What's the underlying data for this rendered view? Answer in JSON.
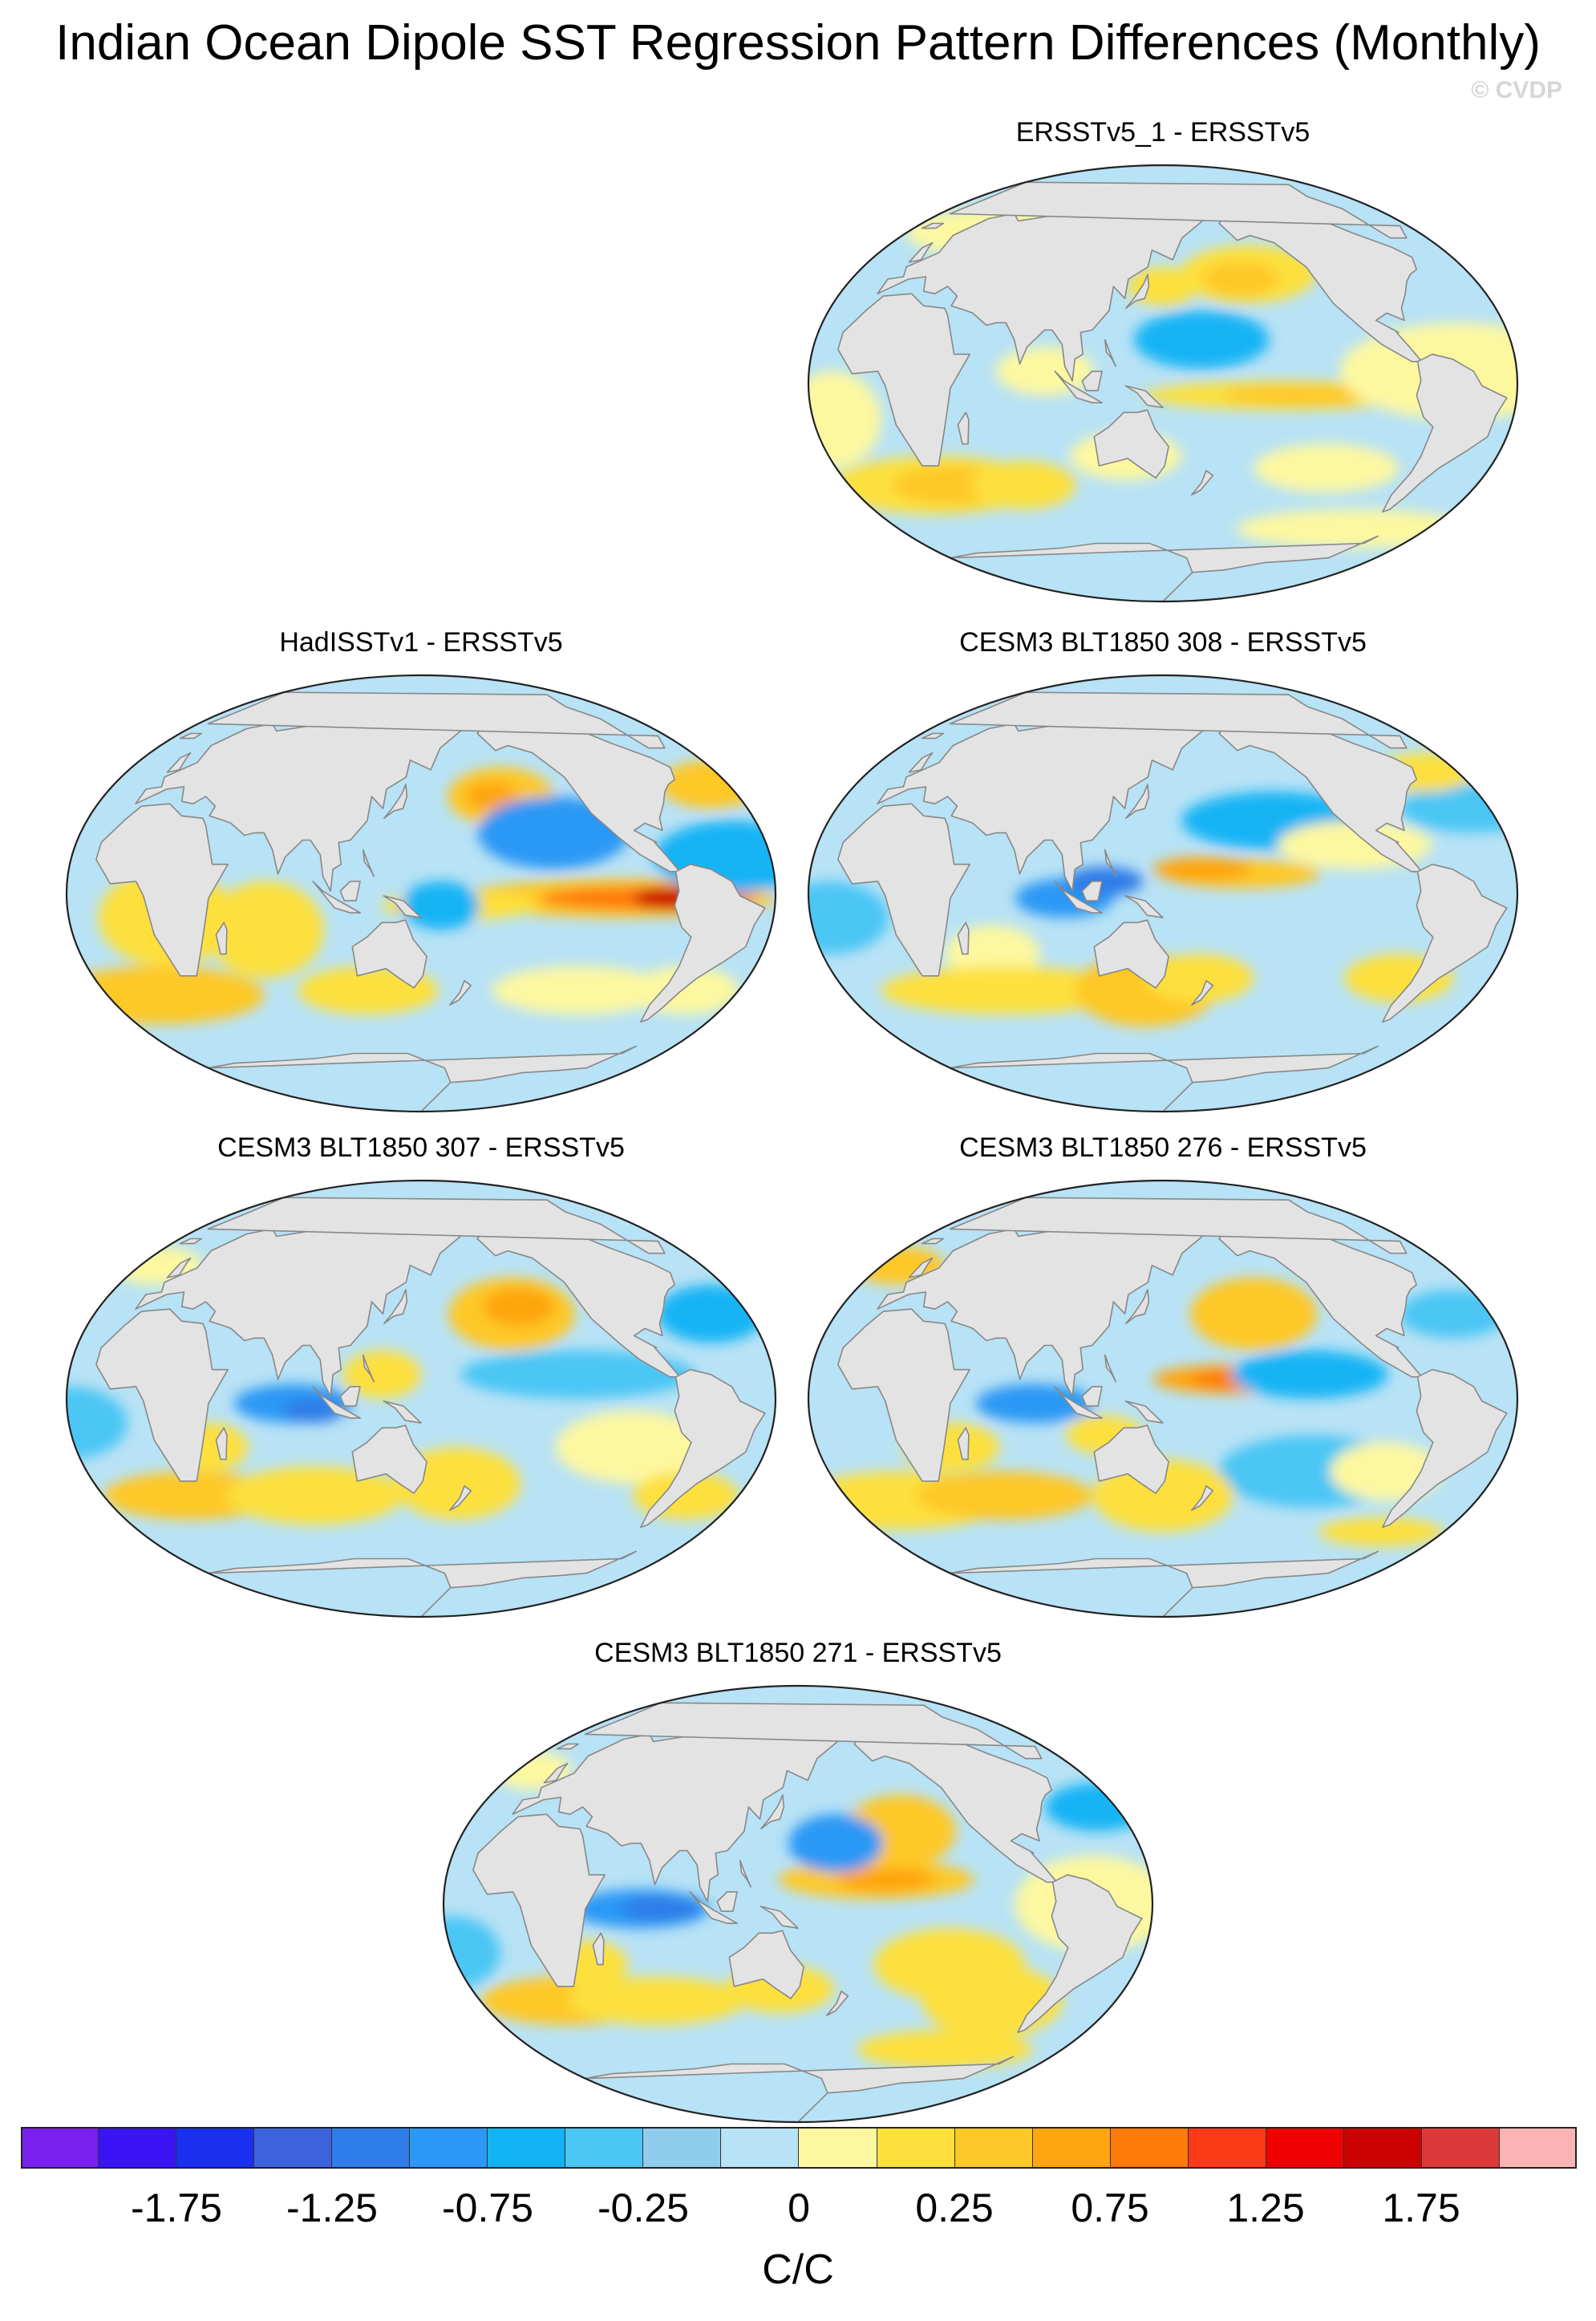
{
  "title": "Indian Ocean Dipole SST Regression Pattern Differences (Monthly)",
  "credit": "© CVDP",
  "panels": [
    {
      "id": "p1",
      "label": "ERSSTv5_1 - ERSSTv5"
    },
    {
      "id": "p2",
      "label": "HadISSTv1 - ERSSTv5"
    },
    {
      "id": "p3",
      "label": "CESM3 BLT1850 308 - ERSSTv5"
    },
    {
      "id": "p4",
      "label": "CESM3 BLT1850 307 - ERSSTv5"
    },
    {
      "id": "p5",
      "label": "CESM3 BLT1850 276 - ERSSTv5"
    },
    {
      "id": "p6",
      "label": "CESM3 BLT1850 271 - ERSSTv5"
    }
  ],
  "colorbar": {
    "colors": [
      "#7a20ee",
      "#3a14f5",
      "#1a2ff0",
      "#3c62dc",
      "#2f7de8",
      "#2c98f5",
      "#12b4f5",
      "#4cc6f5",
      "#90ccec",
      "#b8e2f5",
      "#fdf8a0",
      "#fde03c",
      "#fec828",
      "#fea510",
      "#fe7a0a",
      "#fd3a18",
      "#f00000",
      "#cc0202",
      "#dc3a3a",
      "#fbb4b4"
    ],
    "labels": [
      "-1.75",
      "-1.25",
      "-0.75",
      "-0.25",
      "0",
      "0.25",
      "0.75",
      "1.25",
      "1.75"
    ],
    "units": "C/C"
  },
  "map_colors": {
    "land": "#e3e3e3",
    "coast": "#888888",
    "ocean_base": "#b8e2f5"
  }
}
